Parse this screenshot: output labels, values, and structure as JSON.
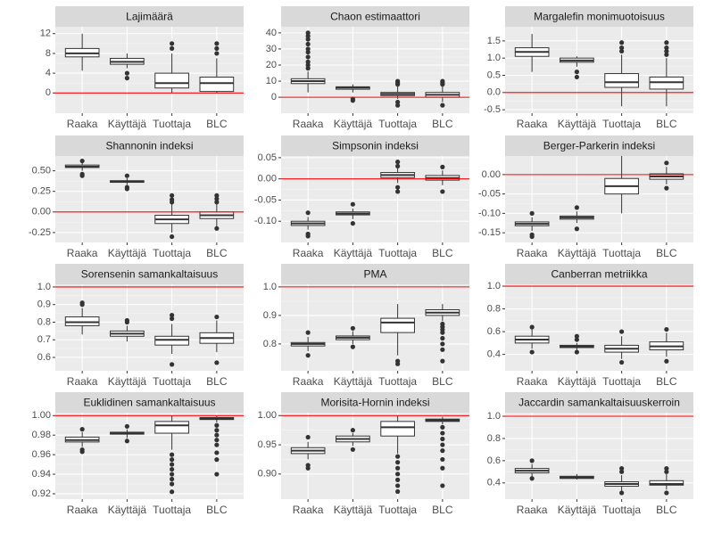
{
  "chart_data": [
    {
      "type": "box",
      "title": "Lajimäärä",
      "categories": [
        "Raaka",
        "Käyttäjä",
        "Tuottaja",
        "BLC"
      ],
      "ylim": [
        -4.1,
        13.4
      ],
      "yticks": [
        0,
        4,
        8,
        12
      ],
      "hline": 0,
      "boxes": [
        {
          "whislo": 4.5,
          "q1": 7.3,
          "med": 8,
          "q3": 9,
          "whishi": 12,
          "fliers": []
        },
        {
          "whislo": 5,
          "q1": 5.8,
          "med": 6.3,
          "q3": 7,
          "whishi": 8,
          "fliers": [
            4,
            3
          ]
        },
        {
          "whislo": 0,
          "q1": 1,
          "med": 2,
          "q3": 4,
          "whishi": 8,
          "fliers": [
            9,
            10
          ]
        },
        {
          "whislo": 0,
          "q1": 0.3,
          "med": 2,
          "q3": 3.2,
          "whishi": 7,
          "fliers": [
            8,
            9,
            10
          ]
        }
      ]
    },
    {
      "type": "box",
      "title": "Chaon estimaattori",
      "categories": [
        "Raaka",
        "Käyttäjä",
        "Tuottaja",
        "BLC"
      ],
      "ylim": [
        -9.9,
        43.8
      ],
      "yticks": [
        0,
        10,
        20,
        30,
        40
      ],
      "hline": 0,
      "boxes": [
        {
          "whislo": 3,
          "q1": 8.5,
          "med": 10,
          "q3": 11.5,
          "whishi": 16,
          "fliers": [
            18,
            20,
            22,
            25,
            28,
            30,
            33,
            36,
            38,
            40
          ]
        },
        {
          "whislo": 3,
          "q1": 5,
          "med": 6,
          "q3": 6.5,
          "whishi": 8,
          "fliers": [
            -1,
            -2
          ]
        },
        {
          "whislo": -1,
          "q1": 1,
          "med": 2,
          "q3": 3,
          "whishi": 7,
          "fliers": [
            8,
            9,
            10,
            -3,
            -5
          ]
        },
        {
          "whislo": -3,
          "q1": 0,
          "med": 1.5,
          "q3": 3,
          "whishi": 7,
          "fliers": [
            8,
            9,
            10,
            -5
          ]
        }
      ]
    },
    {
      "type": "box",
      "title": "Margalefin monimuotoisuus",
      "categories": [
        "Raaka",
        "Käyttäjä",
        "Tuottaja",
        "BLC"
      ],
      "ylim": [
        -0.6,
        1.91
      ],
      "yticks": [
        -0.5,
        {
          "value": 0,
          "label": "0.0"
        },
        0.5,
        {
          "value": 1,
          "label": "1.0"
        },
        1.5
      ],
      "hline": 0,
      "boxes": [
        {
          "whislo": 0.6,
          "q1": 1.05,
          "med": 1.18,
          "q3": 1.3,
          "whishi": 1.7,
          "fliers": []
        },
        {
          "whislo": 0.75,
          "q1": 0.88,
          "med": 0.93,
          "q3": 1,
          "whishi": 1.05,
          "fliers": [
            0.6,
            0.45
          ]
        },
        {
          "whislo": -0.4,
          "q1": 0.15,
          "med": 0.3,
          "q3": 0.55,
          "whishi": 1.1,
          "fliers": [
            1.2,
            1.3,
            1.45
          ]
        },
        {
          "whislo": -0.4,
          "q1": 0.1,
          "med": 0.3,
          "q3": 0.45,
          "whishi": 1,
          "fliers": [
            1.1,
            1.2,
            1.3,
            1.45
          ]
        }
      ]
    },
    {
      "type": "box",
      "title": "Shannonin indeksi",
      "categories": [
        "Raaka",
        "Käyttäjä",
        "Tuottaja",
        "BLC"
      ],
      "ylim": [
        -0.37,
        0.68
      ],
      "yticks": [
        -0.25,
        {
          "value": 0,
          "label": "0.00"
        },
        0.25,
        {
          "value": 0.5,
          "label": "0.50"
        }
      ],
      "hline": 0,
      "boxes": [
        {
          "whislo": 0.5,
          "q1": 0.54,
          "med": 0.55,
          "q3": 0.57,
          "whishi": 0.6,
          "fliers": [
            0.46,
            0.44,
            0.62
          ]
        },
        {
          "whislo": 0.33,
          "q1": 0.36,
          "med": 0.37,
          "q3": 0.38,
          "whishi": 0.41,
          "fliers": [
            0.3,
            0.28,
            0.44
          ]
        },
        {
          "whislo": -0.25,
          "q1": -0.14,
          "med": -0.09,
          "q3": -0.04,
          "whishi": 0.1,
          "fliers": [
            0.12,
            0.15,
            0.2,
            -0.3
          ]
        },
        {
          "whislo": -0.18,
          "q1": -0.08,
          "med": -0.04,
          "q3": 0,
          "whishi": 0.1,
          "fliers": [
            0.12,
            0.16,
            0.2,
            -0.2
          ]
        }
      ]
    },
    {
      "type": "box",
      "title": "Simpsonin indeksi",
      "categories": [
        "Raaka",
        "Käyttäjä",
        "Tuottaja",
        "BLC"
      ],
      "ylim": [
        -0.15,
        0.054
      ],
      "yticks": [
        {
          "value": -0.1,
          "label": "-0.10"
        },
        -0.05,
        {
          "value": 0,
          "label": "0.00"
        },
        0.05
      ],
      "hline": 0,
      "boxes": [
        {
          "whislo": -0.12,
          "q1": -0.11,
          "med": -0.105,
          "q3": -0.1,
          "whishi": -0.09,
          "fliers": [
            -0.08,
            -0.13,
            -0.135
          ]
        },
        {
          "whislo": -0.095,
          "q1": -0.085,
          "med": -0.082,
          "q3": -0.078,
          "whishi": -0.07,
          "fliers": [
            -0.06,
            -0.105
          ]
        },
        {
          "whislo": -0.01,
          "q1": 0.003,
          "med": 0.009,
          "q3": 0.015,
          "whishi": 0.025,
          "fliers": [
            0.03,
            0.04,
            -0.02,
            -0.03
          ]
        },
        {
          "whislo": -0.015,
          "q1": -0.003,
          "med": 0.002,
          "q3": 0.008,
          "whishi": 0.02,
          "fliers": [
            0.028,
            -0.03
          ]
        }
      ]
    },
    {
      "type": "box",
      "title": "Berger-Parkerin indeksi",
      "categories": [
        "Raaka",
        "Käyttäjä",
        "Tuottaja",
        "BLC"
      ],
      "ylim": [
        -0.175,
        0.048
      ],
      "yticks": [
        -0.15,
        {
          "value": -0.1,
          "label": "-0.10"
        },
        -0.05,
        {
          "value": 0,
          "label": "0.00"
        }
      ],
      "hline": 0,
      "boxes": [
        {
          "whislo": -0.145,
          "q1": -0.132,
          "med": -0.127,
          "q3": -0.122,
          "whishi": -0.11,
          "fliers": [
            -0.1,
            -0.155,
            -0.16
          ]
        },
        {
          "whislo": -0.125,
          "q1": -0.115,
          "med": -0.111,
          "q3": -0.107,
          "whishi": -0.095,
          "fliers": [
            -0.085,
            -0.14
          ]
        },
        {
          "whislo": -0.1,
          "q1": -0.05,
          "med": -0.03,
          "q3": -0.01,
          "whishi": 0.05,
          "fliers": []
        },
        {
          "whislo": -0.025,
          "q1": -0.012,
          "med": -0.005,
          "q3": 0.002,
          "whishi": 0.02,
          "fliers": [
            0.03,
            -0.035
          ]
        }
      ]
    },
    {
      "type": "box",
      "title": "Sorensenin samankaltaisuus",
      "categories": [
        "Raaka",
        "Käyttäjä",
        "Tuottaja",
        "BLC"
      ],
      "ylim": [
        0.524,
        1.015
      ],
      "yticks": [
        0.6,
        0.7,
        0.8,
        0.9,
        {
          "value": 1,
          "label": "1.0"
        }
      ],
      "hline": 1,
      "boxes": [
        {
          "whislo": 0.73,
          "q1": 0.78,
          "med": 0.8,
          "q3": 0.83,
          "whishi": 0.88,
          "fliers": [
            0.9,
            0.91
          ]
        },
        {
          "whislo": 0.69,
          "q1": 0.72,
          "med": 0.735,
          "q3": 0.75,
          "whishi": 0.78,
          "fliers": [
            0.8,
            0.81
          ]
        },
        {
          "whislo": 0.62,
          "q1": 0.67,
          "med": 0.7,
          "q3": 0.72,
          "whishi": 0.79,
          "fliers": [
            0.82,
            0.84,
            0.56
          ]
        },
        {
          "whislo": 0.63,
          "q1": 0.68,
          "med": 0.71,
          "q3": 0.74,
          "whishi": 0.81,
          "fliers": [
            0.83,
            0.57
          ]
        }
      ]
    },
    {
      "type": "box",
      "title": "PMA",
      "categories": [
        "Raaka",
        "Käyttäjä",
        "Tuottaja",
        "BLC"
      ],
      "ylim": [
        0.706,
        1.009
      ],
      "yticks": [
        0.8,
        0.9,
        {
          "value": 1,
          "label": "1.0"
        }
      ],
      "hline": 1,
      "boxes": [
        {
          "whislo": 0.775,
          "q1": 0.793,
          "med": 0.8,
          "q3": 0.805,
          "whishi": 0.825,
          "fliers": [
            0.84,
            0.76
          ]
        },
        {
          "whislo": 0.8,
          "q1": 0.815,
          "med": 0.822,
          "q3": 0.828,
          "whishi": 0.845,
          "fliers": [
            0.855,
            0.79
          ]
        },
        {
          "whislo": 0.76,
          "q1": 0.84,
          "med": 0.875,
          "q3": 0.89,
          "whishi": 0.94,
          "fliers": [
            0.74,
            0.73
          ]
        },
        {
          "whislo": 0.88,
          "q1": 0.9,
          "med": 0.91,
          "q3": 0.92,
          "whishi": 0.94,
          "fliers": [
            0.87,
            0.86,
            0.85,
            0.84,
            0.82,
            0.8,
            0.78,
            0.74
          ]
        }
      ]
    },
    {
      "type": "box",
      "title": "Canberran metriikka",
      "categories": [
        "Raaka",
        "Käyttäjä",
        "Tuottaja",
        "BLC"
      ],
      "ylim": [
        0.256,
        1.016
      ],
      "yticks": [
        0.4,
        0.6,
        0.8,
        {
          "value": 1,
          "label": "1.0"
        }
      ],
      "hline": 1,
      "boxes": [
        {
          "whislo": 0.45,
          "q1": 0.5,
          "med": 0.53,
          "q3": 0.56,
          "whishi": 0.62,
          "fliers": [
            0.64,
            0.42
          ]
        },
        {
          "whislo": 0.44,
          "q1": 0.46,
          "med": 0.47,
          "q3": 0.48,
          "whishi": 0.5,
          "fliers": [
            0.53,
            0.56,
            0.42
          ]
        },
        {
          "whislo": 0.36,
          "q1": 0.42,
          "med": 0.45,
          "q3": 0.48,
          "whishi": 0.56,
          "fliers": [
            0.6,
            0.33
          ]
        },
        {
          "whislo": 0.38,
          "q1": 0.44,
          "med": 0.47,
          "q3": 0.51,
          "whishi": 0.59,
          "fliers": [
            0.62,
            0.34
          ]
        }
      ]
    },
    {
      "type": "box",
      "title": "Euklidinen samankaltaisuus",
      "categories": [
        "Raaka",
        "Käyttäjä",
        "Tuottaja",
        "BLC"
      ],
      "ylim": [
        0.9145,
        1.003
      ],
      "yticks": [
        0.92,
        0.94,
        0.96,
        0.98,
        {
          "value": 1,
          "label": "1.00"
        }
      ],
      "hline": 1,
      "boxes": [
        {
          "whislo": 0.968,
          "q1": 0.973,
          "med": 0.975,
          "q3": 0.978,
          "whishi": 0.983,
          "fliers": [
            0.986,
            0.965,
            0.963
          ]
        },
        {
          "whislo": 0.977,
          "q1": 0.981,
          "med": 0.982,
          "q3": 0.983,
          "whishi": 0.986,
          "fliers": [
            0.989,
            0.974
          ]
        },
        {
          "whislo": 0.965,
          "q1": 0.982,
          "med": 0.99,
          "q3": 0.994,
          "whishi": 1,
          "fliers": [
            0.96,
            0.955,
            0.95,
            0.945,
            0.94,
            0.935,
            0.93,
            0.922
          ]
        },
        {
          "whislo": 0.993,
          "q1": 0.996,
          "med": 0.997,
          "q3": 0.998,
          "whishi": 1,
          "fliers": [
            0.99,
            0.985,
            0.98,
            0.975,
            0.97,
            0.962,
            0.955,
            0.94
          ]
        }
      ]
    },
    {
      "type": "box",
      "title": "Morisita-Hornin indeksi",
      "categories": [
        "Raaka",
        "Käyttäjä",
        "Tuottaja",
        "BLC"
      ],
      "ylim": [
        0.857,
        1.005
      ],
      "yticks": [
        {
          "value": 0.9,
          "label": "0.90"
        },
        0.95,
        {
          "value": 1,
          "label": "1.00"
        }
      ],
      "hline": 1,
      "boxes": [
        {
          "whislo": 0.925,
          "q1": 0.935,
          "med": 0.94,
          "q3": 0.945,
          "whishi": 0.955,
          "fliers": [
            0.963,
            0.915,
            0.91
          ]
        },
        {
          "whislo": 0.948,
          "q1": 0.955,
          "med": 0.96,
          "q3": 0.965,
          "whishi": 0.97,
          "fliers": [
            0.975,
            0.942
          ]
        },
        {
          "whislo": 0.935,
          "q1": 0.965,
          "med": 0.98,
          "q3": 0.99,
          "whishi": 1,
          "fliers": [
            0.93,
            0.92,
            0.91,
            0.9,
            0.89,
            0.88,
            0.87
          ]
        },
        {
          "whislo": 0.985,
          "q1": 0.99,
          "med": 0.992,
          "q3": 0.994,
          "whishi": 0.998,
          "fliers": [
            0.98,
            0.97,
            0.96,
            0.95,
            0.94,
            0.925,
            0.91,
            0.88
          ]
        }
      ]
    },
    {
      "type": "box",
      "title": "Jaccardin samankaltaisuuskerroin",
      "categories": [
        "Raaka",
        "Käyttäjä",
        "Tuottaja",
        "BLC"
      ],
      "ylim": [
        0.254,
        1.032
      ],
      "yticks": [
        0.4,
        0.6,
        0.8,
        {
          "value": 1,
          "label": "1.0"
        }
      ],
      "hline": 1,
      "boxes": [
        {
          "whislo": 0.45,
          "q1": 0.49,
          "med": 0.51,
          "q3": 0.53,
          "whishi": 0.57,
          "fliers": [
            0.6,
            0.44
          ]
        },
        {
          "whislo": 0.43,
          "q1": 0.44,
          "med": 0.45,
          "q3": 0.46,
          "whishi": 0.48,
          "fliers": []
        },
        {
          "whislo": 0.33,
          "q1": 0.37,
          "med": 0.39,
          "q3": 0.41,
          "whishi": 0.47,
          "fliers": [
            0.5,
            0.53,
            0.31
          ]
        },
        {
          "whislo": 0.34,
          "q1": 0.38,
          "med": 0.39,
          "q3": 0.42,
          "whishi": 0.48,
          "fliers": [
            0.5,
            0.53,
            0.31
          ]
        }
      ]
    }
  ]
}
